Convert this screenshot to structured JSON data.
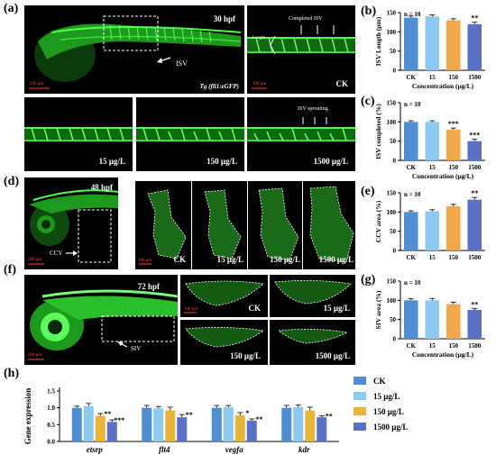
{
  "panels": {
    "a": {
      "letter": "(a)",
      "time": "30 hpf",
      "isv": "ISV",
      "tg_prefix": "Tg",
      "tg_body": "(fli1:eGFP)",
      "scale1": "200 μm",
      "scale2": "100 μm",
      "completed": "Completed ISV",
      "length": "Length",
      "ck": "CK",
      "c15": "15 μg/L",
      "c150": "150 μg/L",
      "c1500": "1500 μg/L",
      "sprouting": "ISV sprouting"
    },
    "d": {
      "letter": "(d)",
      "time": "48 hpf",
      "ccv": "CCV",
      "scale1": "200 μm",
      "scale2": "100 μm",
      "ck": "CK",
      "c15": "15 μg/L",
      "c150": "150 μg/L",
      "c1500": "1500 μg/L"
    },
    "f": {
      "letter": "(f)",
      "time": "72 hpf",
      "siv": "SIV",
      "scale1": "200 μm",
      "scale2": "100 μm",
      "ck": "CK",
      "c15": "15 μg/L",
      "c150": "150 μg/L",
      "c1500": "1500 μg/L"
    }
  },
  "chart_data": [
    {
      "id": "b",
      "letter": "(b)",
      "type": "bar",
      "n_label": "n = 10",
      "categories": [
        "CK",
        "15",
        "150",
        "1500"
      ],
      "values": [
        137,
        140,
        130,
        120
      ],
      "errors": [
        4,
        4,
        4,
        5
      ],
      "sig": [
        "",
        "",
        "",
        "**"
      ],
      "colors": [
        "#4f8fd1",
        "#8ec9ef",
        "#f0a84a",
        "#5a72c4"
      ],
      "ylabel": "ISV Length (μm)",
      "xlabel": "Concentration (μg/L)",
      "ylim": [
        0,
        150
      ],
      "yticks": [
        0,
        50,
        100,
        150
      ]
    },
    {
      "id": "c",
      "letter": "(c)",
      "type": "bar",
      "n_label": "n = 10",
      "categories": [
        "CK",
        "15",
        "150",
        "1500"
      ],
      "values": [
        100,
        100,
        80,
        50
      ],
      "errors": [
        3,
        3,
        4,
        5
      ],
      "sig": [
        "",
        "",
        "***",
        "***"
      ],
      "colors": [
        "#4f8fd1",
        "#8ec9ef",
        "#f0a84a",
        "#5a72c4"
      ],
      "ylabel": "ISV completed (%)",
      "xlabel": "Concentration (μg/L)",
      "ylim": [
        0,
        150
      ],
      "yticks": [
        0,
        50,
        100,
        150
      ]
    },
    {
      "id": "e",
      "letter": "(e)",
      "type": "bar",
      "n_label": "n = 10",
      "categories": [
        "CK",
        "15",
        "150",
        "1500"
      ],
      "values": [
        100,
        102,
        115,
        132
      ],
      "errors": [
        3,
        4,
        5,
        6
      ],
      "sig": [
        "",
        "",
        "",
        "**"
      ],
      "colors": [
        "#4f8fd1",
        "#8ec9ef",
        "#f0a84a",
        "#5a72c4"
      ],
      "ylabel": "CCV area (%)",
      "xlabel": "",
      "ylim": [
        0,
        150
      ],
      "yticks": [
        0,
        50,
        100,
        150
      ]
    },
    {
      "id": "g",
      "letter": "(g)",
      "type": "bar",
      "n_label": "n = 10",
      "categories": [
        "CK",
        "15",
        "150",
        "1500"
      ],
      "values": [
        100,
        100,
        90,
        75
      ],
      "errors": [
        4,
        5,
        5,
        4
      ],
      "sig": [
        "",
        "",
        "",
        "**"
      ],
      "colors": [
        "#4f8fd1",
        "#8ec9ef",
        "#f0a84a",
        "#5a72c4"
      ],
      "ylabel": "SIV area (%)",
      "xlabel": "Concentration (μg/L)",
      "ylim": [
        0,
        150
      ],
      "yticks": [
        0,
        50,
        100,
        150
      ]
    },
    {
      "id": "h",
      "letter": "(h)",
      "type": "bar",
      "categories": [
        "etsrp",
        "flt4",
        "vegfa",
        "kdr"
      ],
      "ylabel": "Gene expression",
      "ylim": [
        0,
        1.5
      ],
      "yticks": [
        0.0,
        0.5,
        1.0,
        1.5
      ],
      "series": [
        {
          "name": "CK",
          "color": "#4f8fd1",
          "values": [
            1.0,
            1.0,
            1.0,
            1.0
          ],
          "errors": [
            0.05,
            0.07,
            0.07,
            0.07
          ],
          "sig": [
            "",
            "",
            "",
            ""
          ]
        },
        {
          "name": "15 μg/L",
          "color": "#8ec9ef",
          "values": [
            1.05,
            0.98,
            1.02,
            1.02
          ],
          "errors": [
            0.08,
            0.06,
            0.05,
            0.06
          ],
          "sig": [
            "",
            "",
            "",
            ""
          ]
        },
        {
          "name": "150 μg/L",
          "color": "#e8b53c",
          "values": [
            0.76,
            0.92,
            0.78,
            0.92
          ],
          "errors": [
            0.07,
            0.1,
            0.08,
            0.1
          ],
          "sig": [
            "**",
            "",
            "*",
            ""
          ]
        },
        {
          "name": "1500 μg/L",
          "color": "#5a72c4",
          "values": [
            0.58,
            0.72,
            0.62,
            0.72
          ],
          "errors": [
            0.06,
            0.08,
            0.05,
            0.04
          ],
          "sig": [
            "***",
            "**",
            "**",
            "**"
          ]
        }
      ]
    }
  ]
}
